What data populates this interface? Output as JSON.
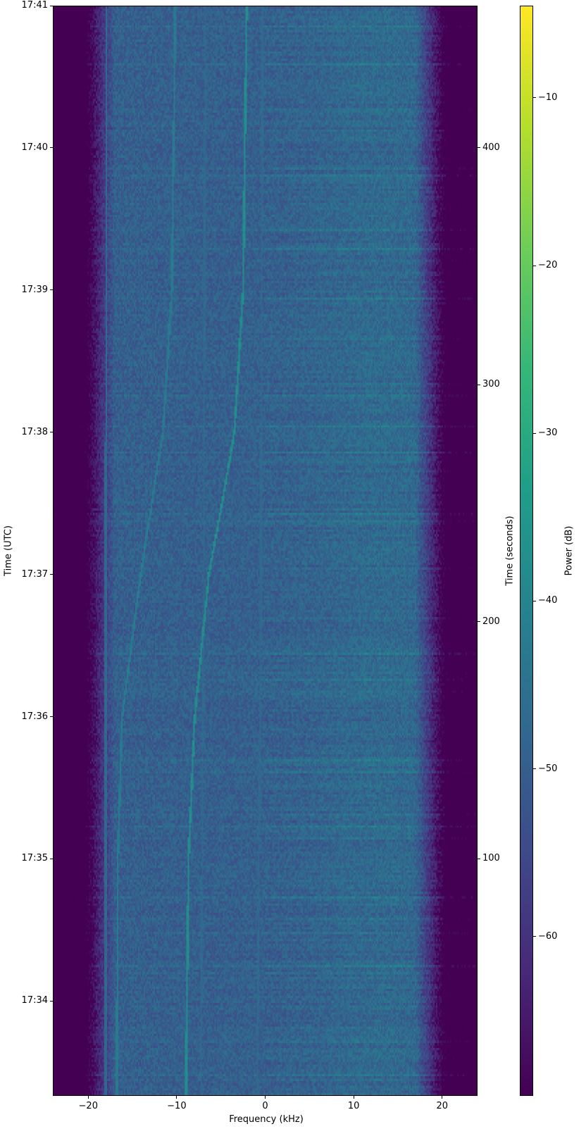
{
  "chart_data": {
    "type": "heatmap",
    "subtype": "spectrogram",
    "xlabel": "Frequency (kHz)",
    "ylabel_left": "Time (UTC)",
    "ylabel_right": "Time (seconds)",
    "colorbar_label": "Power (dB)",
    "colormap": "viridis",
    "xlim": [
      -24,
      24
    ],
    "ylim_seconds": [
      0,
      460
    ],
    "clim": [
      -69.5,
      -4.5
    ],
    "x_ticks": [
      -20,
      -10,
      0,
      10,
      20
    ],
    "x_tick_labels": [
      "−20",
      "−10",
      "0",
      "10",
      "20"
    ],
    "y_left_ticks_seconds": [
      40,
      100,
      160,
      220,
      280,
      340,
      400,
      460
    ],
    "y_left_tick_labels": [
      "17:34",
      "17:35",
      "17:36",
      "17:37",
      "17:38",
      "17:39",
      "17:40",
      "17:41"
    ],
    "y_right_ticks": [
      100,
      200,
      300,
      400
    ],
    "y_right_tick_labels": [
      "100",
      "200",
      "300",
      "400"
    ],
    "colorbar_ticks": [
      -60,
      -50,
      -40,
      -30,
      -20,
      -10
    ],
    "colorbar_tick_labels": [
      "−60",
      "−50",
      "−40",
      "−30",
      "−20",
      "−10"
    ],
    "noise_floor_db": -50,
    "band_edge_db": -70,
    "passband_khz": [
      -21,
      21
    ],
    "grid": false,
    "signal_traces": [
      {
        "t_seconds": [
          0,
          100,
          160,
          220,
          250,
          280,
          340,
          400,
          460
        ],
        "freq_khz": [
          -9.0,
          -8.7,
          -8.0,
          -6.4,
          -4.9,
          -3.5,
          -2.5,
          -2.3,
          -2.1
        ],
        "power_db": -38
      },
      {
        "t_seconds": [
          0,
          100,
          160,
          220,
          280,
          340,
          460
        ],
        "freq_khz": [
          -16.8,
          -16.7,
          -16.2,
          -14.1,
          -11.6,
          -10.6,
          -10.2
        ],
        "power_db": -43
      },
      {
        "t_seconds": [
          0,
          460
        ],
        "freq_khz": [
          -18.1,
          -18.0
        ],
        "power_db": -48
      },
      {
        "t_seconds": [
          0,
          200,
          460
        ],
        "freq_khz": [
          -7.3,
          -7.0,
          -6.8
        ],
        "power_db": -48
      },
      {
        "t_seconds": [
          0,
          200,
          460
        ],
        "freq_khz": [
          -0.9,
          -0.5,
          -0.3
        ],
        "power_db": -48
      }
    ]
  }
}
